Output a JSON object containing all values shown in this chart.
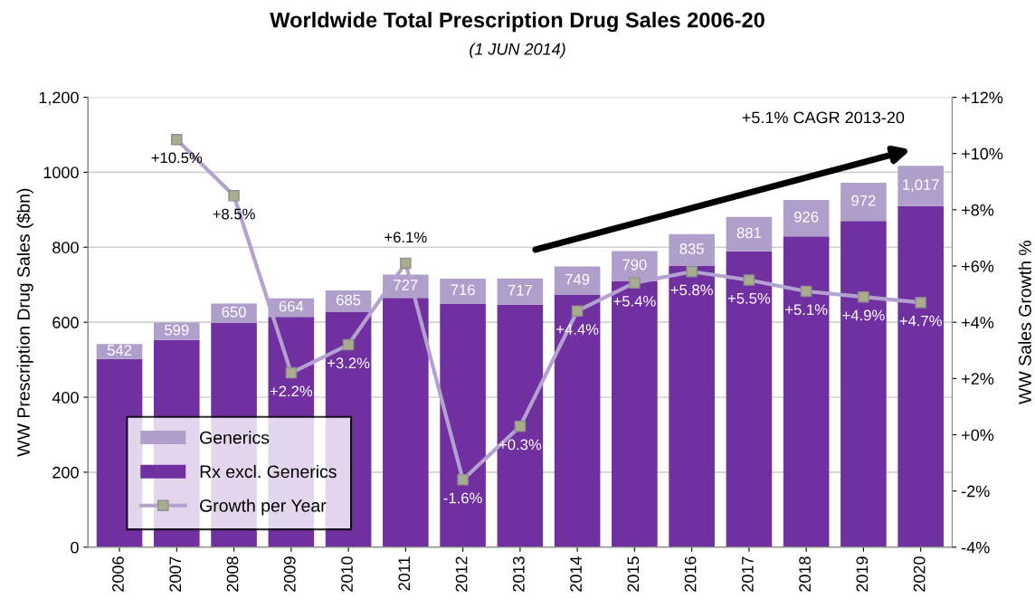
{
  "chart_data": {
    "type": "bar",
    "title": "Worldwide Total Prescription Drug Sales 2006-20",
    "subtitle": "(1 JUN 2014)",
    "ylabel": "WW Prescription Drug Sales ($bn)",
    "y2label": "WW Sales Growth %",
    "categories": [
      "2006",
      "2007",
      "2008",
      "2009",
      "2010",
      "2011",
      "2012",
      "2013",
      "2014",
      "2015",
      "2016",
      "2017",
      "2018",
      "2019",
      "2020"
    ],
    "stacked": true,
    "series": [
      {
        "name": "Rx excl. Generics",
        "color": "#7030a0",
        "values": [
          502,
          553,
          598,
          614,
          627,
          665,
          650,
          647,
          673,
          710,
          750,
          789,
          829,
          870,
          910
        ]
      },
      {
        "name": "Generics",
        "color": "#b09fcb",
        "values": [
          40,
          46,
          52,
          50,
          58,
          62,
          66,
          70,
          76,
          80,
          85,
          92,
          97,
          102,
          107
        ]
      },
      {
        "name": "Growth per Year",
        "type": "line",
        "axis": "y2",
        "color": "#b3a2d0",
        "marker": "square",
        "values": [
          null,
          10.5,
          8.5,
          2.2,
          3.2,
          6.1,
          -1.6,
          0.3,
          4.4,
          5.4,
          5.8,
          5.5,
          5.1,
          4.9,
          4.7
        ],
        "value_labels": [
          null,
          "+10.5%",
          "+8.5%",
          "+2.2%",
          "+3.2%",
          "+6.1%",
          "-1.6%",
          "+0.3%",
          "+4.4%",
          "+5.4%",
          "+5.8%",
          "+5.5%",
          "+5.1%",
          "+4.9%",
          "+4.7%"
        ]
      }
    ],
    "totals": [
      "542",
      "599",
      "650",
      "664",
      "685",
      "727",
      "716",
      "717",
      "749",
      "790",
      "835",
      "881",
      "926",
      "972",
      "1,017"
    ],
    "ylim": [
      0,
      1200
    ],
    "yticks": [
      0,
      200,
      400,
      600,
      800,
      1000,
      {
        "value": 1200,
        "label": "1,200"
      }
    ],
    "y2lim": [
      -4,
      12
    ],
    "y2ticks": [
      {
        "value": -4,
        "label": "-4%"
      },
      {
        "value": -2,
        "label": "-2%"
      },
      {
        "value": 0,
        "label": "+0%"
      },
      {
        "value": 2,
        "label": "+2%"
      },
      {
        "value": 4,
        "label": "+4%"
      },
      {
        "value": 6,
        "label": "+6%"
      },
      {
        "value": 8,
        "label": "+8%"
      },
      {
        "value": 10,
        "label": "+10%"
      },
      {
        "value": 12,
        "label": "+12%"
      }
    ],
    "grid": "y",
    "legend": "bottom left",
    "annotations": [
      "+5.1% CAGR 2013-20"
    ]
  }
}
